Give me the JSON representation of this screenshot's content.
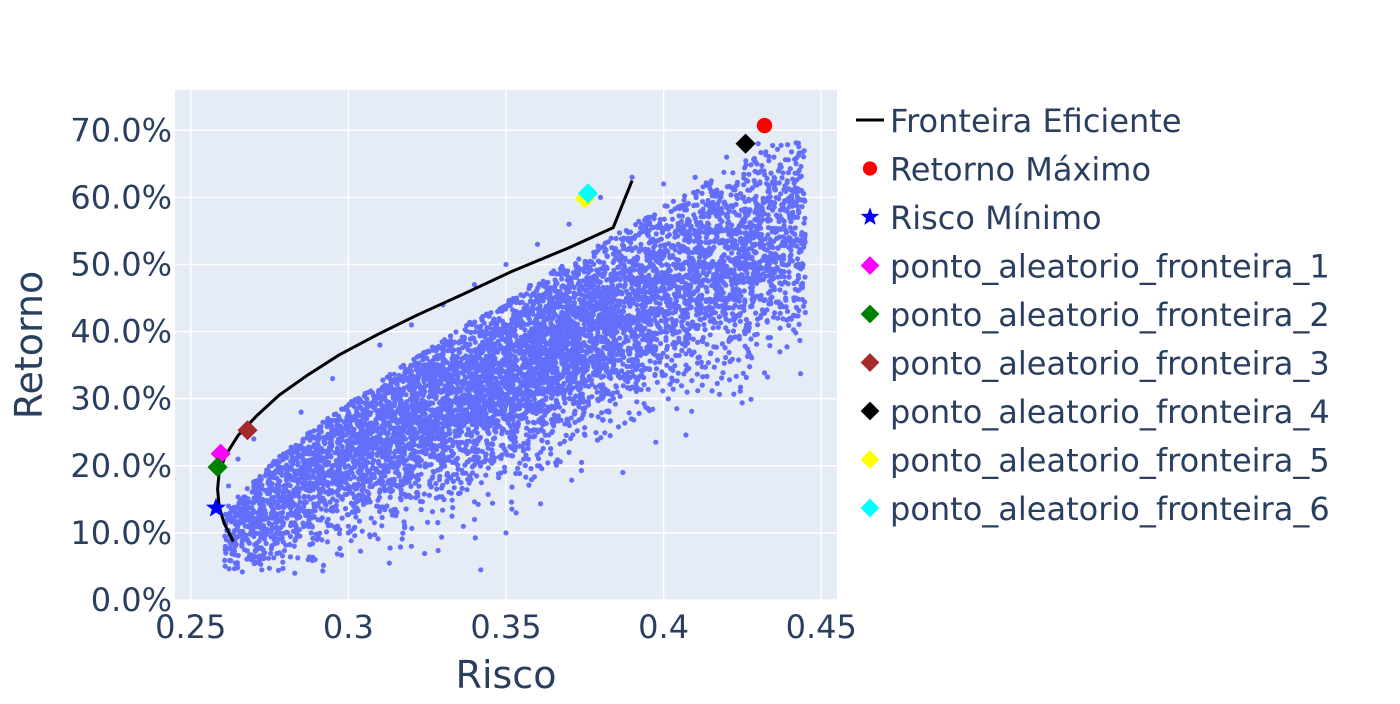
{
  "chart_data": {
    "type": "scatter",
    "title": "",
    "xlabel": "Risco",
    "ylabel": "Retorno",
    "xlim": [
      0.245,
      0.455
    ],
    "ylim": [
      0.0,
      0.76
    ],
    "x_ticks": [
      0.25,
      0.3,
      0.35,
      0.4,
      0.45
    ],
    "x_tick_labels": [
      "0.25",
      "0.3",
      "0.35",
      "0.4",
      "0.45"
    ],
    "y_ticks": [
      0.0,
      0.1,
      0.2,
      0.3,
      0.4,
      0.5,
      0.6,
      0.7
    ],
    "y_tick_labels": [
      "0.0%",
      "10.0%",
      "20.0%",
      "30.0%",
      "40.0%",
      "50.0%",
      "60.0%",
      "70.0%"
    ],
    "grid": true,
    "plot_background": "#E5ECF6",
    "legend_position": "right",
    "simulated_portfolios": {
      "color": "#636EFA",
      "description_points": [
        [
          0.262,
          0.14
        ],
        [
          0.262,
          0.17
        ],
        [
          0.265,
          0.21
        ],
        [
          0.27,
          0.24
        ],
        [
          0.275,
          0.19
        ],
        [
          0.28,
          0.1
        ],
        [
          0.285,
          0.28
        ],
        [
          0.29,
          0.09
        ],
        [
          0.295,
          0.33
        ],
        [
          0.3,
          0.1
        ],
        [
          0.31,
          0.38
        ],
        [
          0.32,
          0.41
        ],
        [
          0.33,
          0.44
        ],
        [
          0.34,
          0.47
        ],
        [
          0.35,
          0.5
        ],
        [
          0.36,
          0.53
        ],
        [
          0.37,
          0.56
        ],
        [
          0.38,
          0.6
        ],
        [
          0.39,
          0.63
        ],
        [
          0.4,
          0.62
        ],
        [
          0.41,
          0.63
        ],
        [
          0.42,
          0.66
        ],
        [
          0.43,
          0.68
        ],
        [
          0.435,
          0.66
        ],
        [
          0.443,
          0.64
        ],
        [
          0.4,
          0.4
        ],
        [
          0.38,
          0.3
        ],
        [
          0.36,
          0.2
        ],
        [
          0.34,
          0.12
        ],
        [
          0.32,
          0.08
        ],
        [
          0.313,
          0.055
        ],
        [
          0.283,
          0.04
        ],
        [
          0.342,
          0.045
        ],
        [
          0.35,
          0.1
        ],
        [
          0.37,
          0.22
        ],
        [
          0.39,
          0.34
        ],
        [
          0.41,
          0.46
        ],
        [
          0.39,
          0.48
        ],
        [
          0.36,
          0.4
        ],
        [
          0.33,
          0.3
        ],
        [
          0.3,
          0.2
        ],
        [
          0.28,
          0.15
        ],
        [
          0.32,
          0.25
        ],
        [
          0.35,
          0.35
        ],
        [
          0.38,
          0.45
        ]
      ]
    },
    "efficient_frontier": {
      "name": "Fronteira Eficiente",
      "color": "#000000",
      "points": [
        [
          0.2635,
          0.087
        ],
        [
          0.2605,
          0.115
        ],
        [
          0.259,
          0.14
        ],
        [
          0.2585,
          0.165
        ],
        [
          0.259,
          0.19
        ],
        [
          0.261,
          0.215
        ],
        [
          0.265,
          0.245
        ],
        [
          0.271,
          0.275
        ],
        [
          0.278,
          0.305
        ],
        [
          0.287,
          0.335
        ],
        [
          0.297,
          0.365
        ],
        [
          0.309,
          0.395
        ],
        [
          0.322,
          0.425
        ],
        [
          0.336,
          0.455
        ],
        [
          0.352,
          0.49
        ],
        [
          0.37,
          0.525
        ],
        [
          0.384,
          0.555
        ],
        [
          0.39,
          0.625
        ]
      ]
    },
    "series": [
      {
        "name": "Retorno Máximo",
        "symbol": "circle",
        "color": "#FF0000",
        "x": 0.432,
        "y": 0.707
      },
      {
        "name": "Risco Mínimo",
        "symbol": "star",
        "color": "#0000FF",
        "x": 0.258,
        "y": 0.137
      },
      {
        "name": "ponto_aleatorio_fronteira_1",
        "symbol": "diamond",
        "color": "#FF00FF",
        "x": 0.2595,
        "y": 0.218
      },
      {
        "name": "ponto_aleatorio_fronteira_2",
        "symbol": "diamond",
        "color": "#008000",
        "x": 0.2585,
        "y": 0.198
      },
      {
        "name": "ponto_aleatorio_fronteira_3",
        "symbol": "diamond",
        "color": "#A52A2A",
        "x": 0.268,
        "y": 0.253
      },
      {
        "name": "ponto_aleatorio_fronteira_4",
        "symbol": "diamond",
        "color": "#000000",
        "x": 0.426,
        "y": 0.68
      },
      {
        "name": "ponto_aleatorio_fronteira_5",
        "symbol": "diamond",
        "color": "#FFFF00",
        "x": 0.375,
        "y": 0.598
      },
      {
        "name": "ponto_aleatorio_fronteira_6",
        "symbol": "diamond",
        "color": "#00FFFF",
        "x": 0.376,
        "y": 0.606
      }
    ]
  }
}
